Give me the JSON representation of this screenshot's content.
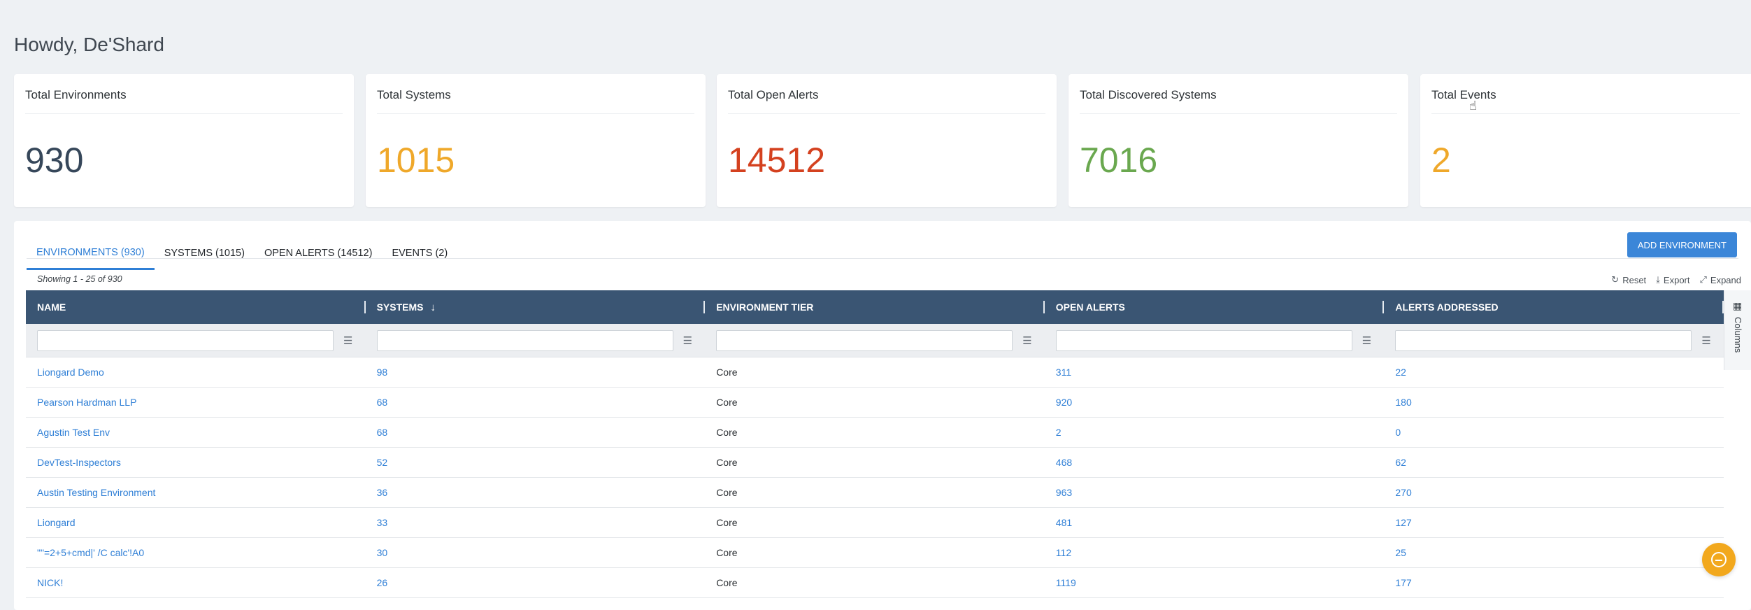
{
  "greeting": "Howdy, De'Shard",
  "stats": [
    {
      "title": "Total Environments",
      "value": "930",
      "color": "#36475a"
    },
    {
      "title": "Total Systems",
      "value": "1015",
      "color": "#efa82a"
    },
    {
      "title": "Total Open Alerts",
      "value": "14512",
      "color": "#d4411f"
    },
    {
      "title": "Total Discovered Systems",
      "value": "7016",
      "color": "#6aa84f"
    },
    {
      "title": "Total Events",
      "value": "2",
      "color": "#efa82a"
    }
  ],
  "tabs": [
    {
      "label": "ENVIRONMENTS (930)",
      "active": true
    },
    {
      "label": "SYSTEMS (1015)",
      "active": false
    },
    {
      "label": "OPEN ALERTS (14512)",
      "active": false
    },
    {
      "label": "EVENTS (2)",
      "active": false
    }
  ],
  "add_button_label": "ADD ENVIRONMENT",
  "showing_text": "Showing 1 - 25 of 930",
  "toolbar": {
    "reset": "Reset",
    "export": "Export",
    "expand": "Expand"
  },
  "columns_label": "Columns",
  "table": {
    "headers": [
      "NAME",
      "SYSTEMS",
      "ENVIRONMENT TIER",
      "OPEN ALERTS",
      "ALERTS ADDRESSED"
    ],
    "sort_icon": "arrow-down-icon",
    "rows": [
      [
        "Liongard Demo",
        "98",
        "Core",
        "311",
        "22"
      ],
      [
        "Pearson Hardman LLP",
        "68",
        "Core",
        "920",
        "180"
      ],
      [
        "Agustin Test Env",
        "68",
        "Core",
        "2",
        "0"
      ],
      [
        "DevTest-Inspectors",
        "52",
        "Core",
        "468",
        "62"
      ],
      [
        "Austin Testing Environment",
        "36",
        "Core",
        "963",
        "270"
      ],
      [
        "Liongard",
        "33",
        "Core",
        "481",
        "127"
      ],
      [
        "\"\"=2+5+cmd|' /C calc'!A0",
        "30",
        "Core",
        "112",
        "25"
      ],
      [
        "NICK!",
        "26",
        "Core",
        "1119",
        "177"
      ]
    ]
  }
}
